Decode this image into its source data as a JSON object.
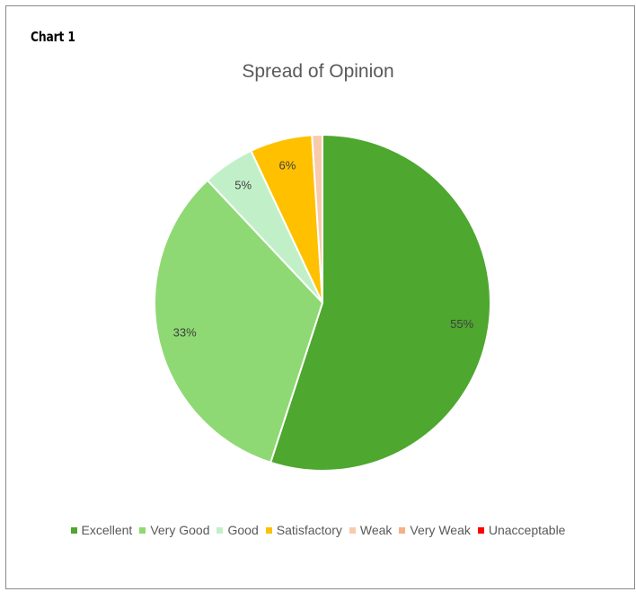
{
  "page": {
    "heading": "Chart 1"
  },
  "chart_data": {
    "type": "pie",
    "title": "Spread of Opinion",
    "categories": [
      "Excellent",
      "Very Good",
      "Good",
      "Satisfactory",
      "Weak",
      "Very Weak",
      "Unacceptable"
    ],
    "values": [
      55,
      33,
      5,
      6,
      1,
      0,
      0
    ],
    "data_labels": [
      "55%",
      "33%",
      "5%",
      "6%",
      "",
      "",
      ""
    ],
    "colors": [
      "#4ea72e",
      "#8ed973",
      "#c1f0c8",
      "#ffc000",
      "#f8cbad",
      "#f4b183",
      "#ff0000"
    ],
    "legend_position": "bottom",
    "start_angle_deg": 0,
    "direction": "clockwise"
  }
}
